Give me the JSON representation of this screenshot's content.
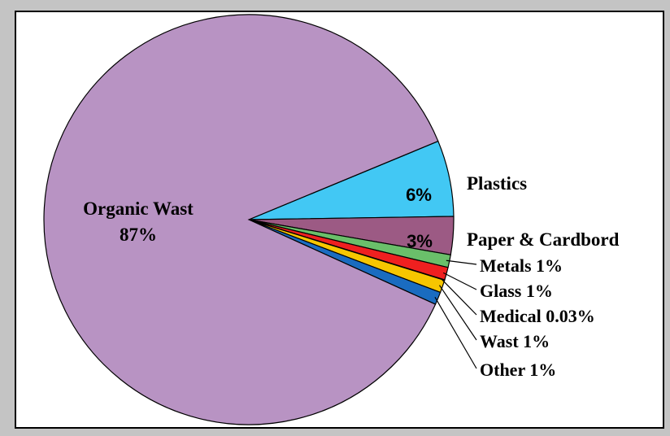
{
  "chart_data": {
    "type": "pie",
    "slices": [
      {
        "label": "Organic Wast",
        "value": 87,
        "value_label": "87%",
        "color": "#b893c3"
      },
      {
        "label": "Plastics",
        "value": 6,
        "value_label": "6%",
        "color": "#42c8f4"
      },
      {
        "label": "Paper & Cardbord",
        "value": 3,
        "value_label": "3%",
        "color": "#9c5a84"
      },
      {
        "label": "Metals 1%",
        "value": 1,
        "value_label": "",
        "color": "#6abf6a"
      },
      {
        "label": "Glass 1%",
        "value": 1,
        "value_label": "",
        "color": "#ef2020"
      },
      {
        "label": "Medical 0.03%",
        "value": 0.03,
        "value_label": "",
        "color": "#ffffff"
      },
      {
        "label": "Wast 1%",
        "value": 1,
        "value_label": "",
        "color": "#f6c600"
      },
      {
        "label": "Other 1%",
        "value": 1,
        "value_label": "",
        "color": "#1a6cc0"
      }
    ]
  }
}
